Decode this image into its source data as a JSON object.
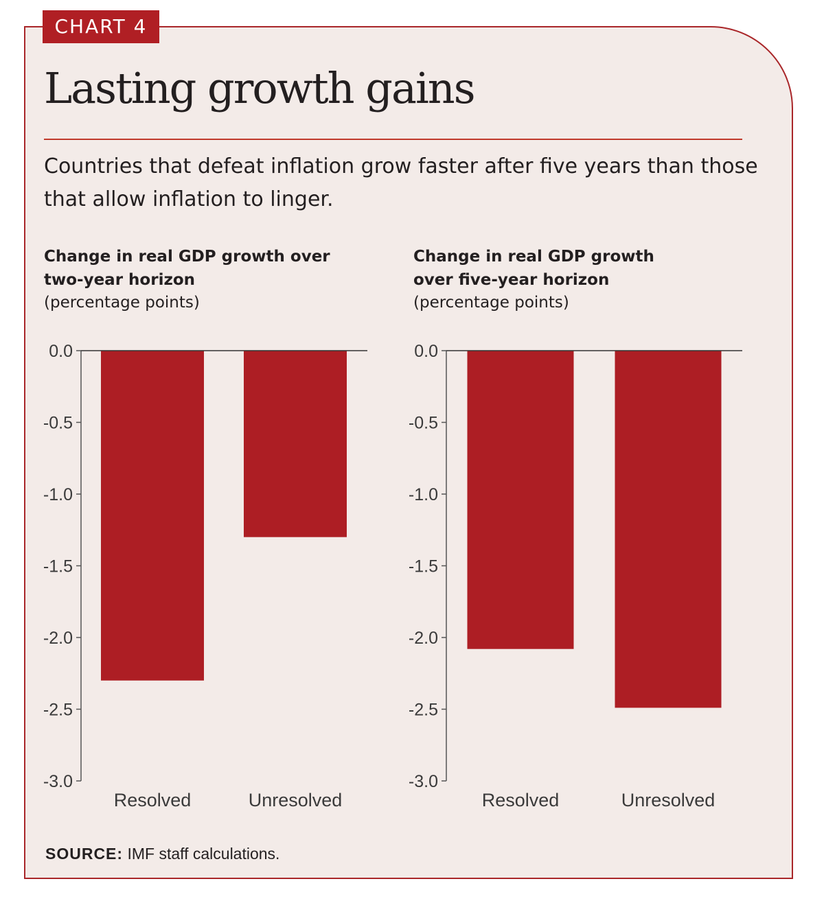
{
  "badge": "CHART 4",
  "title": "Lasting growth gains",
  "subtitle": "Countries that defeat inflation grow faster after five years than those that allow inflation to linger.",
  "source": {
    "label": "SOURCE:",
    "text": "IMF staff calculations."
  },
  "colors": {
    "bar": "#ad1e24",
    "accent": "#b01f24",
    "background": "#f3ebe8"
  },
  "chart_data": [
    {
      "type": "bar",
      "title": "Change in real GDP growth over two-year horizon",
      "ylabel": "(percentage points)",
      "categories": [
        "Resolved",
        "Unresolved"
      ],
      "values": [
        -2.3,
        -1.3
      ],
      "ylim": [
        -3.0,
        0.0
      ],
      "yticks": [
        0.0,
        -0.5,
        -1.0,
        -1.5,
        -2.0,
        -2.5,
        -3.0
      ],
      "ytick_labels": [
        "0.0",
        "-0.5",
        "-1.0",
        "-1.5",
        "-2.0",
        "-2.5",
        "-3.0"
      ]
    },
    {
      "type": "bar",
      "title": "Change in real GDP growth over five-year horizon",
      "ylabel": "(percentage points)",
      "categories": [
        "Resolved",
        "Unresolved"
      ],
      "values": [
        -2.08,
        -2.49
      ],
      "ylim": [
        -3.0,
        0.0
      ],
      "yticks": [
        0.0,
        -0.5,
        -1.0,
        -1.5,
        -2.0,
        -2.5,
        -3.0
      ],
      "ytick_labels": [
        "0.0",
        "-0.5",
        "-1.0",
        "-1.5",
        "-2.0",
        "-2.5",
        "-3.0"
      ]
    }
  ]
}
